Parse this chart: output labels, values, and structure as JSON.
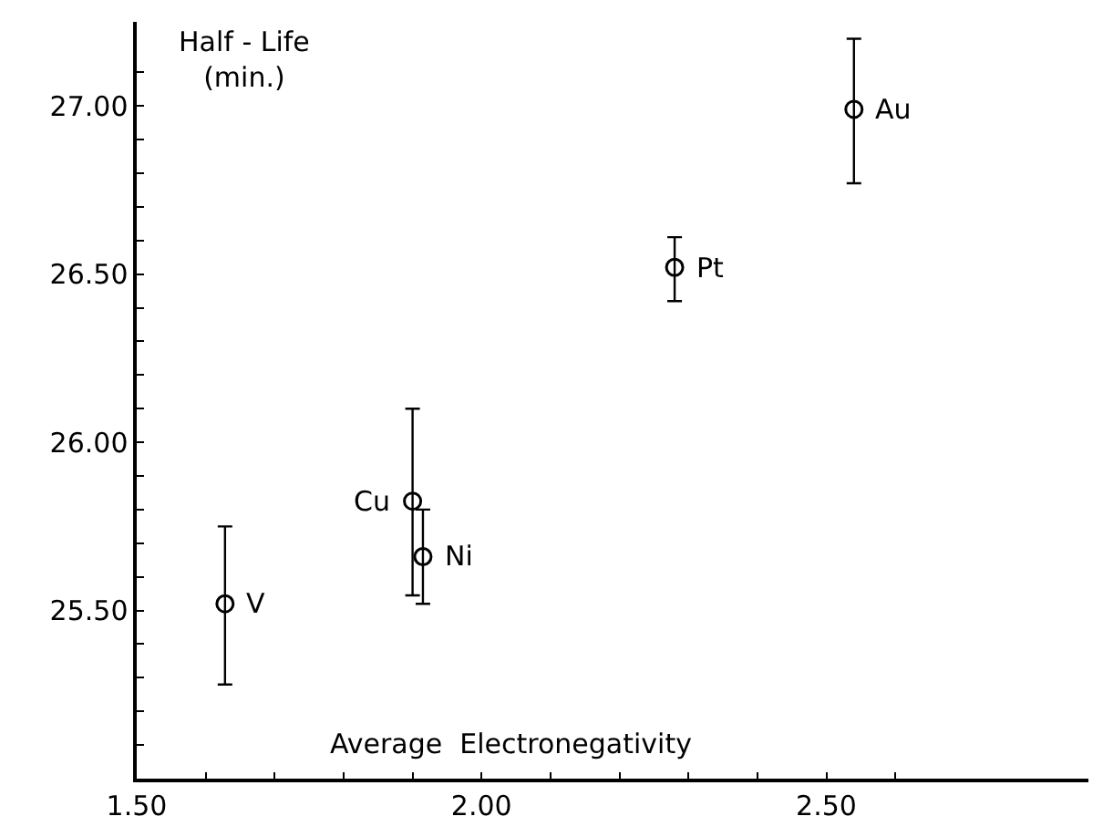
{
  "chart_data": {
    "type": "scatter",
    "xlabel": "Average  Electronegativity",
    "ylabel": "Half - Life\n(min.)",
    "x": [
      1.628,
      1.9,
      1.915,
      2.28,
      2.54
    ],
    "values": [
      25.52,
      25.825,
      25.66,
      26.52,
      26.99
    ],
    "errors": [
      [
        25.28,
        25.75
      ],
      [
        25.545,
        26.1
      ],
      [
        25.52,
        25.8
      ],
      [
        26.42,
        26.61
      ],
      [
        26.77,
        27.2
      ]
    ],
    "color": "#000000",
    "marker": "circle",
    "xlim": [
      1.5,
      2.88
    ],
    "ylim": [
      25.0,
      27.25
    ],
    "xticks": [
      {
        "value": 1.5,
        "label": "1.50"
      },
      {
        "value": 1.6,
        "label": null
      },
      {
        "value": 1.7,
        "label": null
      },
      {
        "value": 1.8,
        "label": null
      },
      {
        "value": 1.9,
        "label": null
      },
      {
        "value": 2.0,
        "label": "2.00"
      },
      {
        "value": 2.1,
        "label": null
      },
      {
        "value": 2.2,
        "label": null
      },
      {
        "value": 2.3,
        "label": null
      },
      {
        "value": 2.4,
        "label": null
      },
      {
        "value": 2.5,
        "label": "2.50"
      },
      {
        "value": 2.6,
        "label": null
      }
    ],
    "yticks": [
      {
        "value": 25.1,
        "label": null
      },
      {
        "value": 25.2,
        "label": null
      },
      {
        "value": 25.3,
        "label": null
      },
      {
        "value": 25.4,
        "label": null
      },
      {
        "value": 25.5,
        "label": "25.50"
      },
      {
        "value": 25.6,
        "label": null
      },
      {
        "value": 25.7,
        "label": null
      },
      {
        "value": 25.8,
        "label": null
      },
      {
        "value": 25.9,
        "label": null
      },
      {
        "value": 26.0,
        "label": "26.00"
      },
      {
        "value": 26.1,
        "label": null
      },
      {
        "value": 26.2,
        "label": null
      },
      {
        "value": 26.3,
        "label": null
      },
      {
        "value": 26.4,
        "label": null
      },
      {
        "value": 26.5,
        "label": "26.50"
      },
      {
        "value": 26.6,
        "label": null
      },
      {
        "value": 26.7,
        "label": null
      },
      {
        "value": 26.8,
        "label": null
      },
      {
        "value": 26.9,
        "label": null
      },
      {
        "value": 27.0,
        "label": "27.00"
      },
      {
        "value": 27.1,
        "label": null
      }
    ],
    "legend": false,
    "annotations": [
      {
        "text": "V",
        "x": 1.628,
        "y": 25.52
      },
      {
        "text": "Cu",
        "x": 1.9,
        "y": 25.825
      },
      {
        "text": "Ni",
        "x": 1.915,
        "y": 25.66
      },
      {
        "text": "Pt",
        "x": 2.28,
        "y": 26.52
      },
      {
        "text": "Au",
        "x": 2.54,
        "y": 26.99
      }
    ]
  }
}
